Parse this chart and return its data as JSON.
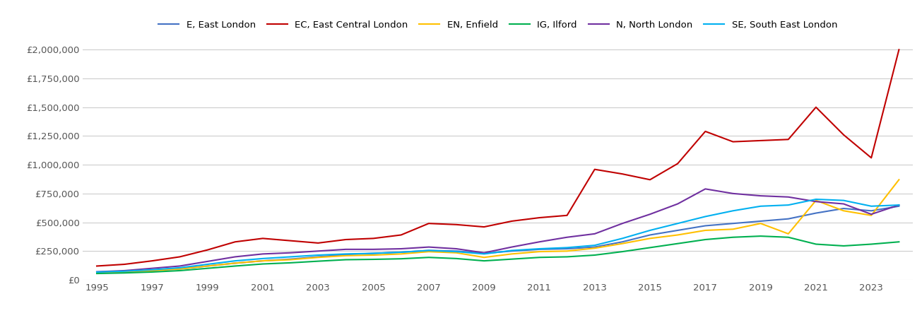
{
  "series": {
    "E, East London": {
      "color": "#4472C4",
      "years": [
        1995,
        1996,
        1997,
        1998,
        1999,
        2000,
        2001,
        2002,
        2003,
        2004,
        2005,
        2006,
        2007,
        2008,
        2009,
        2010,
        2011,
        2012,
        2013,
        2014,
        2015,
        2016,
        2017,
        2018,
        2019,
        2020,
        2021,
        2022,
        2023,
        2024
      ],
      "values": [
        65000,
        70000,
        80000,
        95000,
        120000,
        145000,
        165000,
        180000,
        200000,
        220000,
        230000,
        240000,
        255000,
        250000,
        230000,
        250000,
        265000,
        270000,
        285000,
        330000,
        390000,
        430000,
        470000,
        490000,
        510000,
        530000,
        580000,
        620000,
        600000,
        640000
      ]
    },
    "EC, East Central London": {
      "color": "#C00000",
      "years": [
        1995,
        1996,
        1997,
        1998,
        1999,
        2000,
        2001,
        2002,
        2003,
        2004,
        2005,
        2006,
        2007,
        2008,
        2009,
        2010,
        2011,
        2012,
        2013,
        2014,
        2015,
        2016,
        2017,
        2018,
        2019,
        2020,
        2021,
        2022,
        2023,
        2024
      ],
      "values": [
        120000,
        135000,
        165000,
        200000,
        260000,
        330000,
        360000,
        340000,
        320000,
        350000,
        360000,
        390000,
        490000,
        480000,
        460000,
        510000,
        540000,
        560000,
        960000,
        920000,
        870000,
        1010000,
        1290000,
        1200000,
        1210000,
        1220000,
        1500000,
        1260000,
        1060000,
        2000000
      ]
    },
    "EN, Enfield": {
      "color": "#FFC000",
      "years": [
        1995,
        1996,
        1997,
        1998,
        1999,
        2000,
        2001,
        2002,
        2003,
        2004,
        2005,
        2006,
        2007,
        2008,
        2009,
        2010,
        2011,
        2012,
        2013,
        2014,
        2015,
        2016,
        2017,
        2018,
        2019,
        2020,
        2021,
        2022,
        2023,
        2024
      ],
      "values": [
        65000,
        70000,
        80000,
        95000,
        120000,
        145000,
        165000,
        175000,
        195000,
        210000,
        215000,
        225000,
        245000,
        235000,
        195000,
        225000,
        245000,
        250000,
        275000,
        315000,
        360000,
        390000,
        430000,
        440000,
        490000,
        400000,
        690000,
        600000,
        560000,
        870000
      ]
    },
    "IG, Ilford": {
      "color": "#00B050",
      "years": [
        1995,
        1996,
        1997,
        1998,
        1999,
        2000,
        2001,
        2002,
        2003,
        2004,
        2005,
        2006,
        2007,
        2008,
        2009,
        2010,
        2011,
        2012,
        2013,
        2014,
        2015,
        2016,
        2017,
        2018,
        2019,
        2020,
        2021,
        2022,
        2023,
        2024
      ],
      "values": [
        55000,
        60000,
        68000,
        80000,
        100000,
        120000,
        138000,
        148000,
        162000,
        175000,
        178000,
        183000,
        195000,
        185000,
        165000,
        180000,
        195000,
        200000,
        215000,
        245000,
        280000,
        315000,
        350000,
        370000,
        380000,
        370000,
        310000,
        295000,
        310000,
        330000
      ]
    },
    "N, North London": {
      "color": "#7030A0",
      "years": [
        1995,
        1996,
        1997,
        1998,
        1999,
        2000,
        2001,
        2002,
        2003,
        2004,
        2005,
        2006,
        2007,
        2008,
        2009,
        2010,
        2011,
        2012,
        2013,
        2014,
        2015,
        2016,
        2017,
        2018,
        2019,
        2020,
        2021,
        2022,
        2023,
        2024
      ],
      "values": [
        70000,
        80000,
        100000,
        120000,
        160000,
        200000,
        225000,
        235000,
        250000,
        265000,
        265000,
        270000,
        285000,
        270000,
        235000,
        285000,
        330000,
        370000,
        400000,
        490000,
        570000,
        660000,
        790000,
        750000,
        730000,
        720000,
        680000,
        660000,
        570000,
        650000
      ]
    },
    "SE, South East London": {
      "color": "#00B0F0",
      "years": [
        1995,
        1996,
        1997,
        1998,
        1999,
        2000,
        2001,
        2002,
        2003,
        2004,
        2005,
        2006,
        2007,
        2008,
        2009,
        2010,
        2011,
        2012,
        2013,
        2014,
        2015,
        2016,
        2017,
        2018,
        2019,
        2020,
        2021,
        2022,
        2023,
        2024
      ],
      "values": [
        68000,
        75000,
        88000,
        105000,
        135000,
        165000,
        185000,
        200000,
        215000,
        225000,
        230000,
        240000,
        255000,
        245000,
        225000,
        255000,
        270000,
        280000,
        300000,
        360000,
        430000,
        490000,
        550000,
        600000,
        640000,
        650000,
        700000,
        690000,
        640000,
        650000
      ]
    }
  },
  "ylim": [
    0,
    2100000
  ],
  "yticks": [
    0,
    250000,
    500000,
    750000,
    1000000,
    1250000,
    1500000,
    1750000,
    2000000
  ],
  "ytick_labels": [
    "£0",
    "£250,000",
    "£500,000",
    "£750,000",
    "£1,000,000",
    "£1,250,000",
    "£1,500,000",
    "£1,750,000",
    "£2,000,000"
  ],
  "xticks": [
    1995,
    1997,
    1999,
    2001,
    2003,
    2005,
    2007,
    2009,
    2011,
    2013,
    2015,
    2017,
    2019,
    2021,
    2023
  ],
  "xlim": [
    1994.5,
    2024.5
  ],
  "background_color": "#ffffff",
  "grid_color": "#cccccc",
  "legend_order": [
    "E, East London",
    "EC, East Central London",
    "EN, Enfield",
    "IG, Ilford",
    "N, North London",
    "SE, South East London"
  ]
}
